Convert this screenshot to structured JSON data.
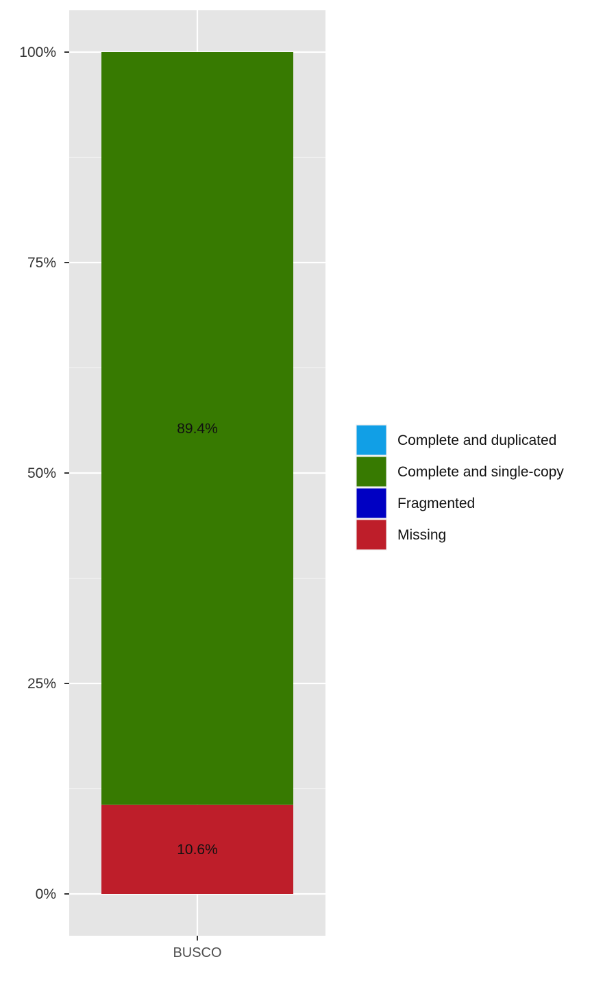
{
  "chart_data": {
    "type": "bar",
    "stacked": true,
    "categories": [
      "BUSCO"
    ],
    "series": [
      {
        "name": "Complete and duplicated",
        "values": [
          0
        ],
        "color": "#119FE6"
      },
      {
        "name": "Complete and single-copy",
        "values": [
          89.4
        ],
        "color": "#377A01"
      },
      {
        "name": "Fragmented",
        "values": [
          0
        ],
        "color": "#0000C3"
      },
      {
        "name": "Missing",
        "values": [
          10.6
        ],
        "color": "#BE1E2A"
      }
    ],
    "data_labels": [
      "89.4%",
      "10.6%"
    ],
    "ylim": [
      0,
      100
    ],
    "yticks": [
      0,
      25,
      50,
      75,
      100
    ],
    "ytick_labels": [
      "0%",
      "25%",
      "50%",
      "75%",
      "100%"
    ],
    "xlabel": "",
    "ylabel": "",
    "title": "",
    "legend_position": "right",
    "grid": true,
    "panel_background": "#E5E5E5"
  }
}
